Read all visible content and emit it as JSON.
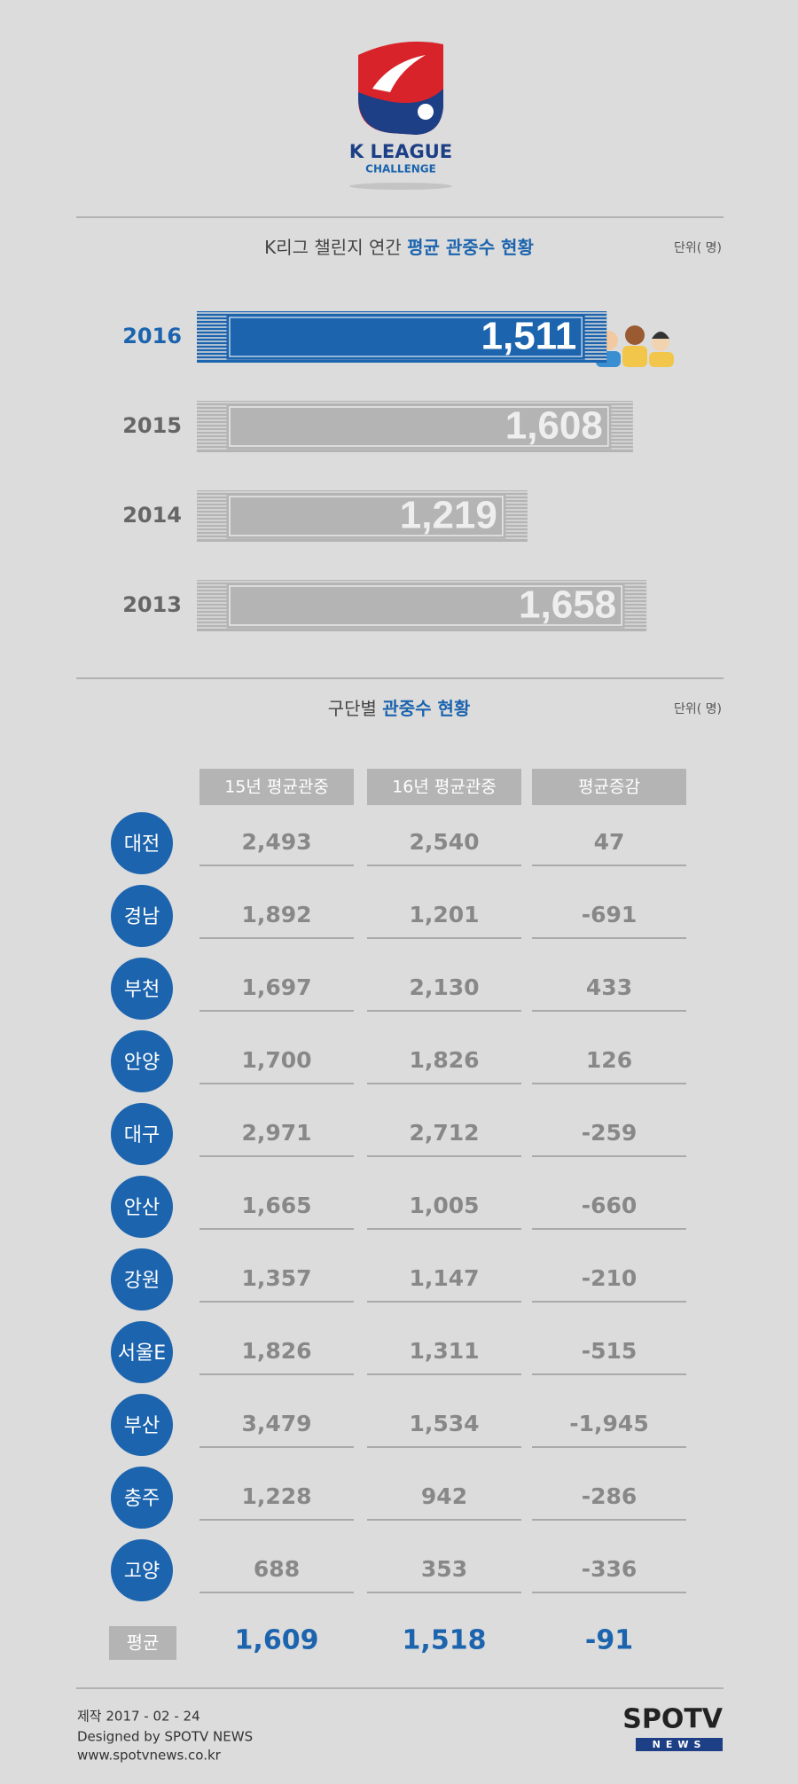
{
  "logo": {
    "line1": "K LEAGUE",
    "line2": "CHALLENGE"
  },
  "chart_data": {
    "type": "bar",
    "orientation": "horizontal",
    "title": "K리그 챌린지 연간 ",
    "title_highlight": "평균 관중수 현황",
    "unit": "단위( 명)",
    "categories": [
      "2016",
      "2015",
      "2014",
      "2013"
    ],
    "values": [
      1511,
      1608,
      1219,
      1658
    ],
    "value_labels": [
      "1,511",
      "1,608",
      "1,219",
      "1,658"
    ],
    "colors": [
      "#1c64ae",
      "#b4b4b4",
      "#b4b4b4",
      "#b4b4b4"
    ],
    "xlim": [
      0,
      1700
    ]
  },
  "table": {
    "title": "구단별 ",
    "title_highlight": "관중수 현황",
    "unit": "단위( 명)",
    "header": [
      "15년 평균관중",
      "16년 평균관중",
      "평균증감"
    ],
    "rows": [
      [
        "대전",
        "2,493",
        "2,540",
        "47"
      ],
      [
        "경남",
        "1,892",
        "1,201",
        "-691"
      ],
      [
        "부천",
        "1,697",
        "2,130",
        "433"
      ],
      [
        "안양",
        "1,700",
        "1,826",
        "126"
      ],
      [
        "대구",
        "2,971",
        "2,712",
        "-259"
      ],
      [
        "안산",
        "1,665",
        "1,005",
        "-660"
      ],
      [
        "강원",
        "1,357",
        "1,147",
        "-210"
      ],
      [
        "서울E",
        "1,826",
        "1,311",
        "-515"
      ],
      [
        "부산",
        "3,479",
        "1,534",
        "-1,945"
      ],
      [
        "충주",
        "1,228",
        "942",
        "-286"
      ],
      [
        "고양",
        "688",
        "353",
        "-336"
      ]
    ],
    "average": [
      "평균",
      "1,609",
      "1,518",
      "-91"
    ]
  },
  "footer": {
    "date": "제작 2017 - 02 - 24",
    "designer": "Designed by SPOTV NEWS",
    "url": "www.spotvnews.co.kr",
    "brand": "SPOTV",
    "brand_sub": "NEWS"
  }
}
